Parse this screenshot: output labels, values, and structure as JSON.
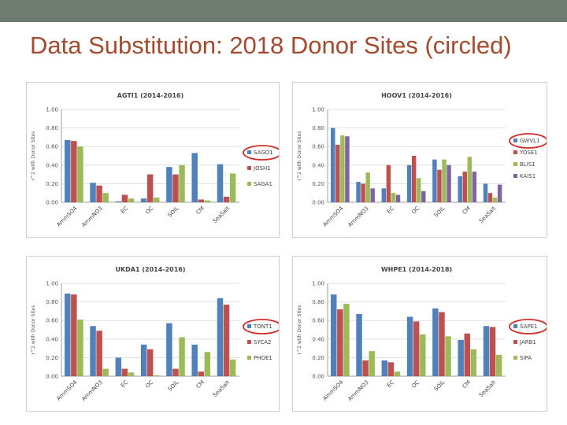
{
  "slide": {
    "title": "Data Substitution: 2018 Donor Sites (circled)"
  },
  "colors": {
    "topbar": "#6e7b70",
    "title": "#a44a2e",
    "series": [
      "#4f81bd",
      "#c0504d",
      "#9bbb59",
      "#8064a2"
    ],
    "circle": "#d0302a"
  },
  "chart_data": [
    {
      "type": "bar",
      "title": "AGTI1 (2014-2016)",
      "ylabel": "r^2 with Donor Sites",
      "categories": [
        "AmmSO4",
        "AmmNO3",
        "EC",
        "OC",
        "SOIL",
        "CM",
        "SeaSalt"
      ],
      "ylim": [
        0,
        1
      ],
      "yticks": [
        "1.00",
        "0.80",
        "0.60",
        "0.40",
        "0.20",
        "0.00"
      ],
      "series": [
        {
          "name": "SAGO1",
          "values": [
            0.67,
            0.21,
            0.01,
            0.04,
            0.38,
            0.53,
            0.41
          ]
        },
        {
          "name": "JOSH1",
          "values": [
            0.66,
            0.18,
            0.08,
            0.3,
            0.3,
            0.03,
            0.06
          ]
        },
        {
          "name": "SAGA1",
          "values": [
            0.6,
            0.1,
            0.04,
            0.05,
            0.4,
            0.02,
            0.31
          ]
        }
      ],
      "circled": "SAGO1"
    },
    {
      "type": "bar",
      "title": "HOOV1 (2014-2016)",
      "ylabel": "r^2 with Donor Sites",
      "categories": [
        "AmmSO4",
        "AmmNO3",
        "EC",
        "OC",
        "SOIL",
        "CM",
        "SeaSalt"
      ],
      "ylim": [
        0,
        1
      ],
      "yticks": [
        "1.00",
        "0.80",
        "0.60",
        "0.40",
        "0.20",
        "0.00"
      ],
      "series": [
        {
          "name": "GWVL1",
          "values": [
            0.8,
            0.22,
            0.15,
            0.4,
            0.46,
            0.28,
            0.2
          ]
        },
        {
          "name": "YOSE1",
          "values": [
            0.62,
            0.2,
            0.4,
            0.5,
            0.35,
            0.33,
            0.1
          ]
        },
        {
          "name": "BLIS1",
          "values": [
            0.72,
            0.32,
            0.1,
            0.26,
            0.46,
            0.49,
            0.05
          ]
        },
        {
          "name": "KAIS1",
          "values": [
            0.71,
            0.15,
            0.08,
            0.12,
            0.4,
            0.33,
            0.19
          ]
        }
      ],
      "circled": "GWVL1"
    },
    {
      "type": "bar",
      "title": "UKDA1 (2014-2016)",
      "ylabel": "r^2 with Donor Sites",
      "categories": [
        "AmmSO4",
        "AmmNO3",
        "EC",
        "OC",
        "SOIL",
        "CM",
        "SeaSalt"
      ],
      "ylim": [
        0,
        1
      ],
      "yticks": [
        "1.00",
        "0.80",
        "0.60",
        "0.40",
        "0.20",
        "0.00"
      ],
      "series": [
        {
          "name": "TONT1",
          "values": [
            0.89,
            0.54,
            0.2,
            0.34,
            0.57,
            0.34,
            0.84
          ]
        },
        {
          "name": "SYCA2",
          "values": [
            0.88,
            0.49,
            0.08,
            0.29,
            0.08,
            0.05,
            0.77
          ]
        },
        {
          "name": "PHOE1",
          "values": [
            0.61,
            0.08,
            0.04,
            0.01,
            0.42,
            0.26,
            0.18
          ]
        }
      ],
      "circled": "TONT1"
    },
    {
      "type": "bar",
      "title": "WHPE1 (2014-2018)",
      "ylabel": "r^2 with Donor Sites",
      "categories": [
        "AmmSO4",
        "AmmNO3",
        "EC",
        "OC",
        "SOIL",
        "CM",
        "SeaSalt"
      ],
      "ylim": [
        0,
        1
      ],
      "yticks": [
        "1.00",
        "0.80",
        "0.60",
        "0.40",
        "0.20",
        "0.00"
      ],
      "series": [
        {
          "name": "SAPE1",
          "values": [
            0.88,
            0.67,
            0.17,
            0.64,
            0.73,
            0.39,
            0.54
          ]
        },
        {
          "name": "JARB1",
          "values": [
            0.72,
            0.17,
            0.15,
            0.59,
            0.69,
            0.46,
            0.53
          ]
        },
        {
          "name": "SIPA",
          "values": [
            0.78,
            0.27,
            0.05,
            0.45,
            0.43,
            0.29,
            0.23
          ]
        }
      ],
      "circled": "SAPE1"
    }
  ]
}
